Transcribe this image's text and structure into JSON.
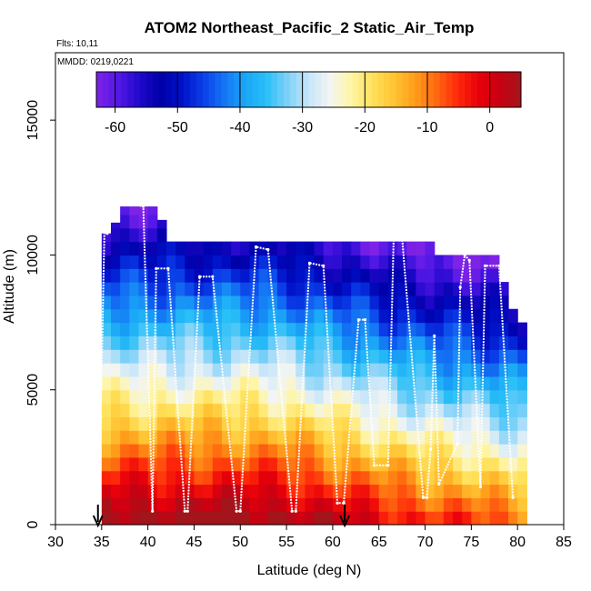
{
  "chart_data": {
    "type": "heatmap",
    "title": "ATOM2 Northeast_Pacific_2 Static_Air_Temp",
    "flights_label": "Flts: 10,11",
    "date_label": "MMDD: 0219,0221",
    "xlabel": "Latitude (deg N)",
    "ylabel": "Altitude (m)",
    "xlim": [
      30,
      85
    ],
    "ylim": [
      0,
      17500
    ],
    "x_ticks": [
      30,
      35,
      40,
      45,
      50,
      55,
      60,
      65,
      70,
      75,
      80,
      85
    ],
    "x_tick_labels": [
      "30",
      "35",
      "40",
      "45",
      "50",
      "55",
      "60",
      "65",
      "70",
      "75",
      "80",
      "85"
    ],
    "y_ticks": [
      0,
      5000,
      10000,
      15000
    ],
    "y_tick_labels": [
      "0",
      "5000",
      "10000",
      "15000"
    ],
    "colorbar": {
      "range": [
        -63,
        5
      ],
      "ticks": [
        -60,
        -50,
        -40,
        -30,
        -20,
        -10,
        0
      ],
      "tick_labels": [
        "-60",
        "-50",
        "-40",
        "-30",
        "-20",
        "-10",
        "0"
      ],
      "colors": [
        "#7e22e6",
        "#5418e6",
        "#2109cc",
        "#0000a8",
        "#0010c8",
        "#0a3ee8",
        "#1473f4",
        "#1aa6f6",
        "#28bff7",
        "#7ed1f8",
        "#c7e6f9",
        "#f2f5f3",
        "#fff5a5",
        "#ffe15a",
        "#ffc433",
        "#ff9c1a",
        "#ff6a10",
        "#ff2a0a",
        "#e8000a",
        "#c80012",
        "#a2151b"
      ]
    },
    "grid": {
      "lat_start": 35,
      "lat_step": 1,
      "n_lat": 46,
      "alt_step": 500,
      "n_alt": 24
    },
    "column_tops": [
      10800,
      11200,
      11800,
      11800,
      11800,
      11800,
      11300,
      10500,
      10500,
      10500,
      10500,
      10500,
      10500,
      10500,
      10500,
      10500,
      10500,
      10500,
      10500,
      10500,
      10500,
      10500,
      10500,
      10500,
      10500,
      10500,
      10500,
      10500,
      10500,
      10500,
      10500,
      10500,
      10500,
      10500,
      10500,
      10500,
      10000,
      10000,
      10000,
      10000,
      10000,
      10000,
      10000,
      9000,
      8000,
      7500
    ],
    "surface_temp_c": {
      "lats": [
        35,
        40,
        45,
        50,
        55,
        60,
        65,
        70,
        75,
        80
      ],
      "values": [
        7,
        7,
        7,
        7,
        6,
        3,
        0,
        -3,
        -5,
        -8
      ]
    },
    "flight_track": {
      "lats": [
        34.6,
        34.9,
        35.3,
        35.6,
        36.5,
        39.5,
        40.5,
        40.9,
        42.2,
        44.0,
        44.3,
        45.6,
        47.0,
        49.6,
        50.0,
        51.7,
        53.0,
        55.6,
        56.0,
        57.5,
        59.0,
        60.5,
        61.2,
        62.8,
        63.5,
        64.5,
        66.0,
        66.6,
        67.5,
        69.8,
        70.2,
        70.6,
        71.0,
        71.5,
        73.5,
        73.8,
        74.3,
        74.8,
        76.0,
        76.5,
        78.0,
        79.5
      ],
      "alts": [
        1500,
        4000,
        11000,
        10800,
        12000,
        11800,
        500,
        9500,
        9500,
        500,
        500,
        9200,
        9200,
        500,
        500,
        10300,
        10200,
        500,
        500,
        9700,
        9600,
        800,
        800,
        7600,
        7600,
        2200,
        2200,
        10700,
        10700,
        1000,
        1000,
        2800,
        7000,
        1500,
        3000,
        8800,
        10000,
        9800,
        1400,
        9600,
        9600,
        1000
      ]
    },
    "markers": {
      "type": "down-arrow",
      "lats": [
        34.6,
        61.3
      ]
    }
  }
}
